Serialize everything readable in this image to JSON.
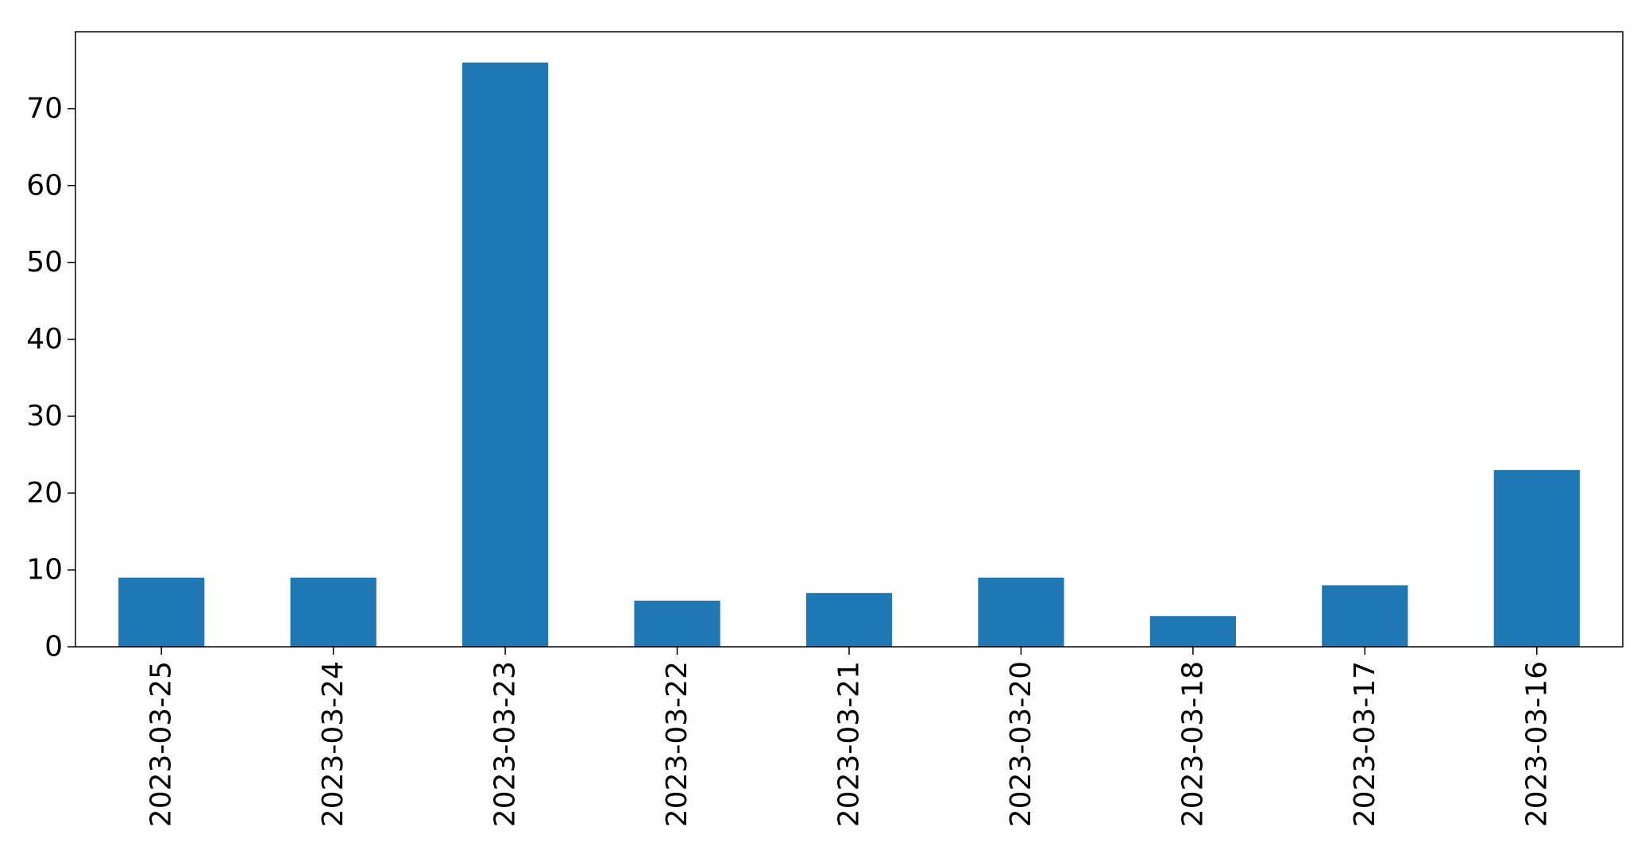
{
  "chart_data": {
    "type": "bar",
    "categories": [
      "2023-03-25",
      "2023-03-24",
      "2023-03-23",
      "2023-03-22",
      "2023-03-21",
      "2023-03-20",
      "2023-03-18",
      "2023-03-17",
      "2023-03-16"
    ],
    "values": [
      9,
      9,
      76,
      6,
      7,
      9,
      4,
      8,
      23
    ],
    "title": "",
    "xlabel": "",
    "ylabel": "",
    "ylim": [
      0,
      80
    ],
    "yticks": [
      0,
      10,
      20,
      30,
      40,
      50,
      60,
      70
    ],
    "bar_color": "#1f77b4",
    "grid": false,
    "legend": "none"
  }
}
